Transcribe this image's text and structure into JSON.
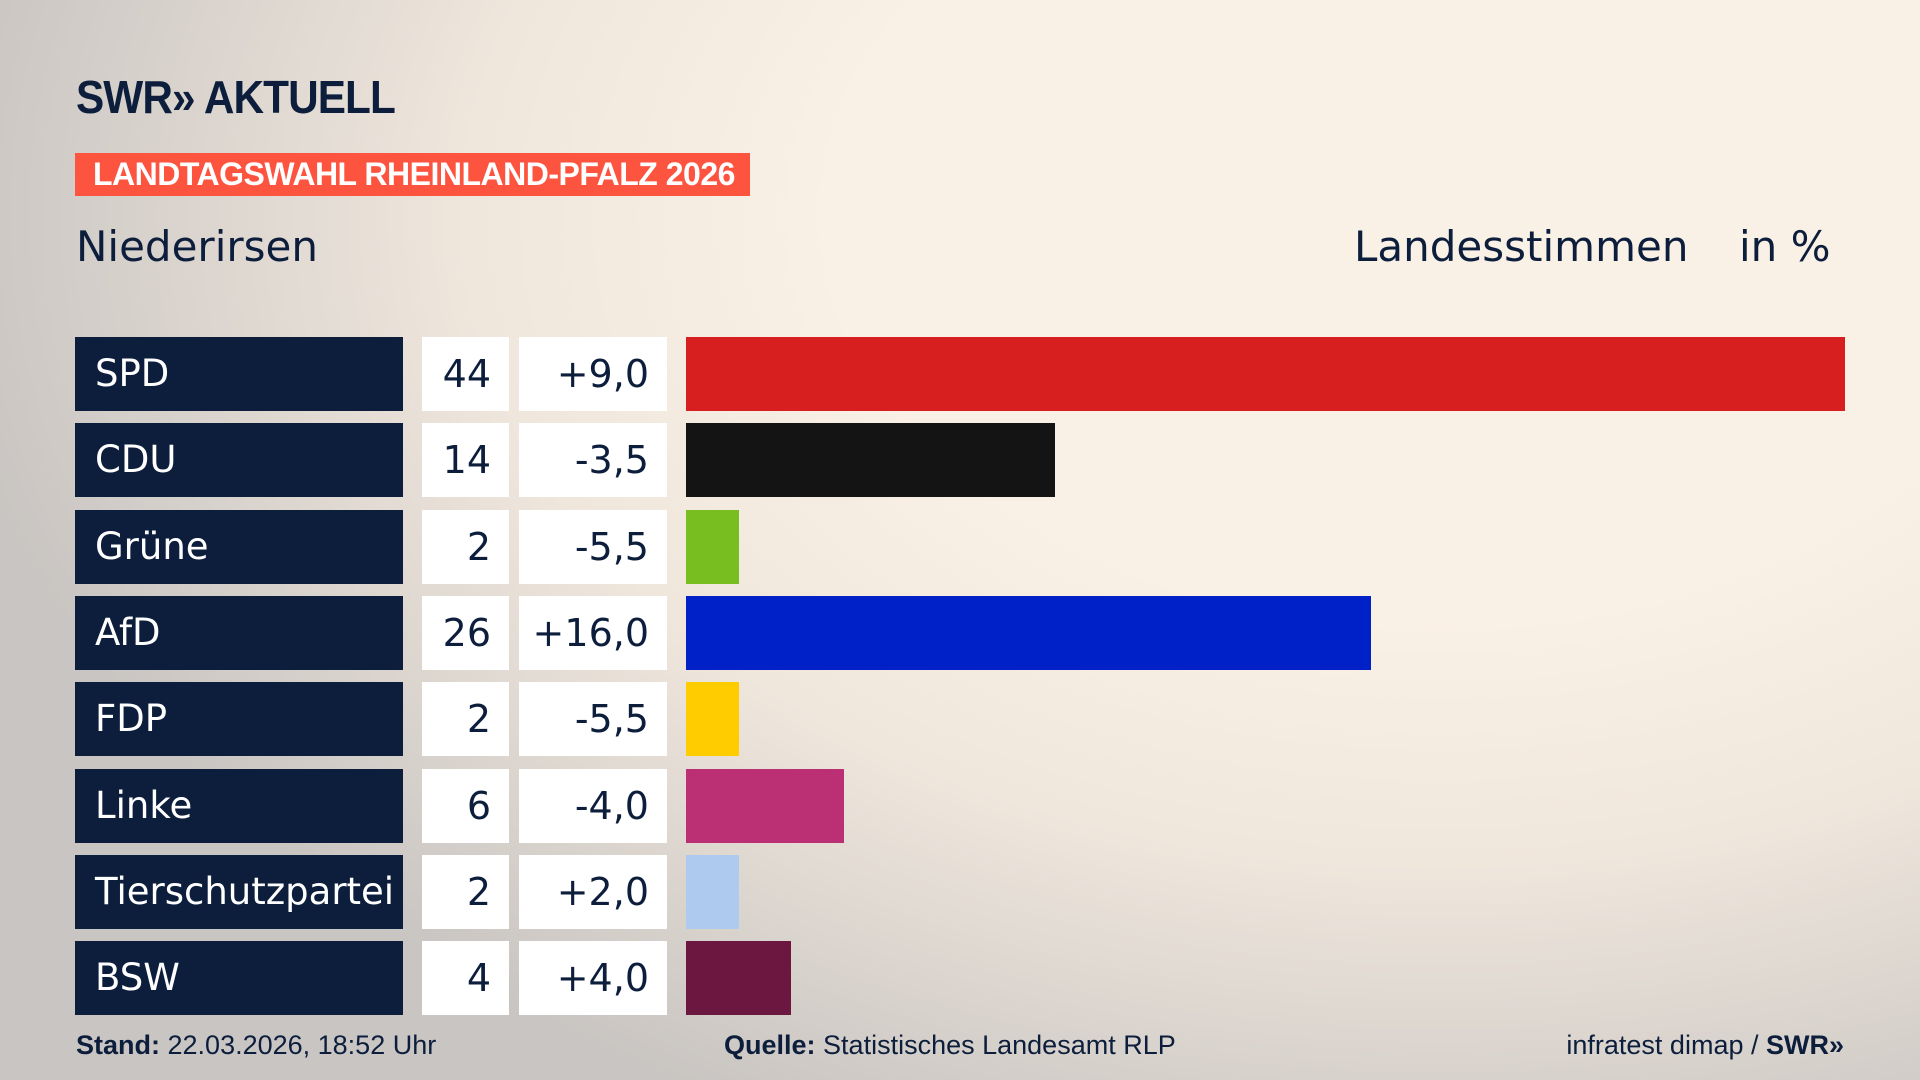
{
  "header": {
    "logo": "SWR» AKTUELL",
    "banner": "LANDTAGSWAHL RHEINLAND-PFALZ 2026",
    "location": "Niederirsen",
    "metric": "Landesstimmen",
    "unit": "in %"
  },
  "chart_data": {
    "type": "bar",
    "orientation": "horizontal",
    "xlim": [
      0,
      44
    ],
    "categories": [
      "SPD",
      "CDU",
      "Grüne",
      "AfD",
      "FDP",
      "Linke",
      "Tierschutzpartei",
      "BSW"
    ],
    "values": [
      44,
      14,
      2,
      26,
      2,
      6,
      2,
      4
    ],
    "changes": [
      "+9,0",
      "-3,5",
      "-5,5",
      "+16,0",
      "-5,5",
      "-4,0",
      "+2,0",
      "+4,0"
    ],
    "value_labels": [
      "44",
      "14",
      "2",
      "26",
      "2",
      "6",
      "2",
      "4"
    ],
    "colors": [
      "#d71f1f",
      "#141414",
      "#78be20",
      "#0021c7",
      "#ffcc00",
      "#bb3075",
      "#aecbef",
      "#6b1740"
    ]
  },
  "footer": {
    "stand_label": "Stand:",
    "stand": "22.03.2026, 18:52 Uhr",
    "source_label": "Quelle:",
    "source": "Statistisches Landesamt RLP",
    "credit": "infratest dimap / ",
    "credit_logo": "SWR»"
  }
}
